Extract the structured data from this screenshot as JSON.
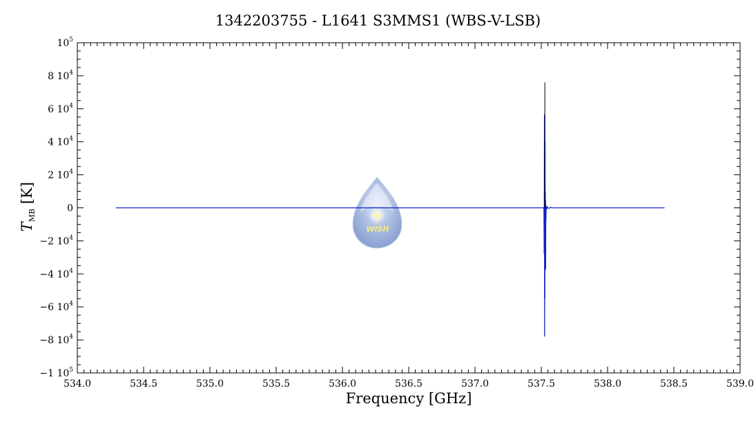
{
  "chart_data": {
    "type": "line",
    "title": "1342203755 - L1641 S3MMS1 (WBS-V-LSB)",
    "xlabel": "Frequency [GHz]",
    "ylabel": {
      "symbol": "T",
      "subscript": "MB",
      "unit": "[K]"
    },
    "xlim": [
      534.0,
      539.0
    ],
    "ylim": [
      -100000,
      100000
    ],
    "xticks": [
      534.0,
      534.5,
      535.0,
      535.5,
      536.0,
      536.5,
      537.0,
      537.5,
      538.0,
      538.5,
      539.0
    ],
    "xtick_labels": [
      "534.0",
      "534.5",
      "535.0",
      "535.5",
      "536.0",
      "536.5",
      "537.0",
      "537.5",
      "538.0",
      "538.5",
      "539.0"
    ],
    "yticks": [
      {
        "value": -100000,
        "mant": "−1 10",
        "exp": "5"
      },
      {
        "value": -80000,
        "mant": "−8 10",
        "exp": "4"
      },
      {
        "value": -60000,
        "mant": "−6 10",
        "exp": "4"
      },
      {
        "value": -40000,
        "mant": "−4 10",
        "exp": "4"
      },
      {
        "value": -20000,
        "mant": "−2 10",
        "exp": "4"
      },
      {
        "value": 0,
        "mant": "0",
        "exp": ""
      },
      {
        "value": 20000,
        "mant": "2 10",
        "exp": "4"
      },
      {
        "value": 40000,
        "mant": "4 10",
        "exp": "4"
      },
      {
        "value": 60000,
        "mant": "6 10",
        "exp": "4"
      },
      {
        "value": 80000,
        "mant": "8 10",
        "exp": "4"
      },
      {
        "value": 100000,
        "mant": "10",
        "exp": "5"
      }
    ],
    "series": [
      {
        "color": "#1020c8",
        "x": [
          534.29,
          537.505,
          537.52,
          537.522,
          537.524,
          537.525,
          537.526,
          537.527,
          537.528,
          537.529,
          537.53,
          537.531,
          537.532,
          537.533,
          537.534,
          537.535,
          537.537,
          537.54,
          537.545,
          537.55,
          537.56,
          537.57,
          537.58,
          538.43
        ],
        "y": [
          0,
          0,
          0,
          -28000,
          56000,
          -78000,
          57000,
          -55000,
          40000,
          -38000,
          10000,
          -30000,
          5000,
          -37000,
          2000,
          -8000,
          1000,
          -1000,
          500,
          0,
          -300,
          300,
          0,
          0
        ]
      },
      {
        "color": "#000000",
        "x": [
          537.526,
          537.527,
          537.5275
        ],
        "y": [
          0,
          76000,
          0
        ]
      }
    ],
    "grid": false,
    "legend": "none"
  },
  "watermark": {
    "text": "WISH"
  }
}
